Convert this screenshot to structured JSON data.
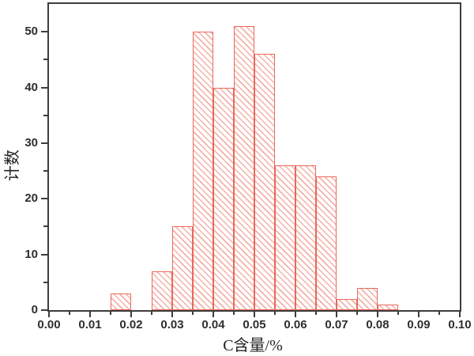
{
  "figure": {
    "background": "#ffffff"
  },
  "chart_data": {
    "type": "bar",
    "subtype": "histogram",
    "title": "",
    "xlabel": "C含量/%",
    "ylabel": "计数",
    "xlim": [
      0.0,
      0.1
    ],
    "ylim": [
      0,
      55
    ],
    "grid": "off",
    "legend": "none",
    "bin_width": 0.005,
    "bins": [
      {
        "x0": 0.015,
        "count": 3
      },
      {
        "x0": 0.025,
        "count": 7
      },
      {
        "x0": 0.03,
        "count": 15
      },
      {
        "x0": 0.035,
        "count": 50
      },
      {
        "x0": 0.04,
        "count": 40
      },
      {
        "x0": 0.045,
        "count": 51
      },
      {
        "x0": 0.05,
        "count": 46
      },
      {
        "x0": 0.055,
        "count": 26
      },
      {
        "x0": 0.06,
        "count": 26
      },
      {
        "x0": 0.065,
        "count": 24
      },
      {
        "x0": 0.07,
        "count": 2
      },
      {
        "x0": 0.075,
        "count": 4
      },
      {
        "x0": 0.08,
        "count": 1
      }
    ],
    "x_major_ticks": [
      {
        "value": 0.0,
        "label": "0.00"
      },
      {
        "value": 0.01,
        "label": "0.01"
      },
      {
        "value": 0.02,
        "label": "0.02"
      },
      {
        "value": 0.03,
        "label": "0.03"
      },
      {
        "value": 0.04,
        "label": "0.04"
      },
      {
        "value": 0.05,
        "label": "0.05"
      },
      {
        "value": 0.06,
        "label": "0.06"
      },
      {
        "value": 0.07,
        "label": "0.07"
      },
      {
        "value": 0.08,
        "label": "0.08"
      },
      {
        "value": 0.09,
        "label": "0.09"
      },
      {
        "value": 0.1,
        "label": "0.10"
      }
    ],
    "x_minor_step": 0.005,
    "y_major_ticks": [
      {
        "value": 0,
        "label": "0"
      },
      {
        "value": 10,
        "label": "10"
      },
      {
        "value": 20,
        "label": "20"
      },
      {
        "value": 30,
        "label": "30"
      },
      {
        "value": 40,
        "label": "40"
      },
      {
        "value": 50,
        "label": "50"
      }
    ],
    "y_minor_step": 5,
    "colors": {
      "bar_edge": "#e8685a",
      "bar_hatch": "#f4b0a8",
      "bar_fill": "#ffffff",
      "axis": "#3d3d3d",
      "tick_label": "#2e2e2e"
    }
  }
}
